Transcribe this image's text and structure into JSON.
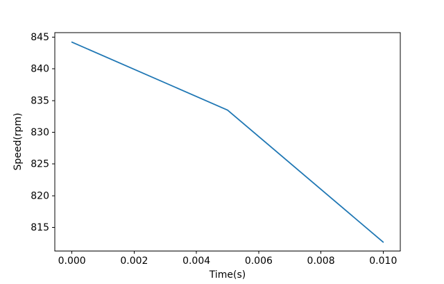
{
  "chart_data": {
    "type": "line",
    "title": "",
    "xlabel": "Time(s)",
    "ylabel": "Speed(rpm)",
    "x": [
      0.0,
      0.005,
      0.01
    ],
    "series": [
      {
        "name": "speed",
        "values": [
          844.2,
          833.5,
          812.7
        ],
        "color": "#1f77b4"
      }
    ],
    "xticks": {
      "values": [
        0.0,
        0.002,
        0.004,
        0.006,
        0.008,
        0.01
      ],
      "labels": [
        "0.000",
        "0.002",
        "0.004",
        "0.006",
        "0.008",
        "0.010"
      ]
    },
    "yticks": {
      "values": [
        815,
        820,
        825,
        830,
        835,
        840,
        845
      ],
      "labels": [
        "815",
        "820",
        "825",
        "830",
        "835",
        "840",
        "845"
      ]
    },
    "xlim": [
      -0.00055,
      0.01055
    ],
    "ylim": [
      811.3,
      845.7
    ],
    "grid": false,
    "legend": null,
    "colors": {
      "line": "#1f77b4",
      "axis": "#000000",
      "text": "#000000",
      "background": "#ffffff"
    }
  }
}
